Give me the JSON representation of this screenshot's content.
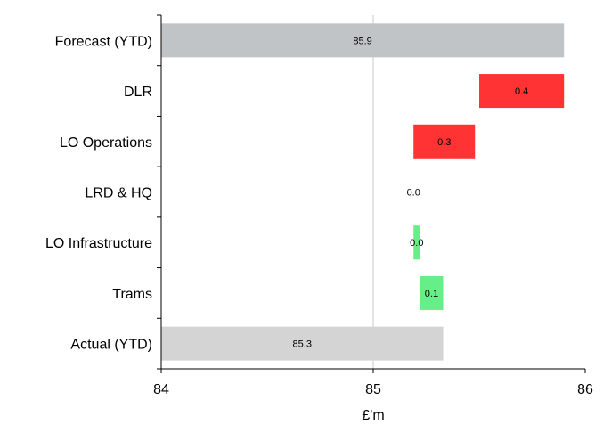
{
  "chart_data": {
    "type": "bar",
    "subtype": "waterfall-horizontal",
    "categories": [
      "Forecast (YTD)",
      "DLR",
      "LO Operations",
      "LRD & HQ",
      "LO Infrastructure",
      "Trams",
      "Actual (YTD)"
    ],
    "bars": [
      {
        "category": "Forecast (YTD)",
        "start": 84.0,
        "end": 85.9,
        "label": "85.9",
        "color": "#c0c4c6"
      },
      {
        "category": "DLR",
        "start": 85.5,
        "end": 85.9,
        "label": "0.4",
        "color": "#ff3333"
      },
      {
        "category": "LO Operations",
        "start": 85.19,
        "end": 85.48,
        "label": "0.3",
        "color": "#ff3333"
      },
      {
        "category": "LRD & HQ",
        "start": 85.19,
        "end": 85.19,
        "label": "0.0",
        "color": "#ff3333"
      },
      {
        "category": "LO Infrastructure",
        "start": 85.19,
        "end": 85.22,
        "label": "0.0",
        "color": "#66ee88"
      },
      {
        "category": "Trams",
        "start": 85.22,
        "end": 85.33,
        "label": "0.1",
        "color": "#66ee88"
      },
      {
        "category": "Actual (YTD)",
        "start": 84.0,
        "end": 85.33,
        "label": "85.3",
        "color": "#d4d4d4"
      }
    ],
    "xlim": [
      84,
      86
    ],
    "xticks": [
      "84",
      "85",
      "86"
    ],
    "xlabel": "£'m",
    "gridlines": [
      85
    ],
    "gridline_color": "#c8c8c8"
  }
}
